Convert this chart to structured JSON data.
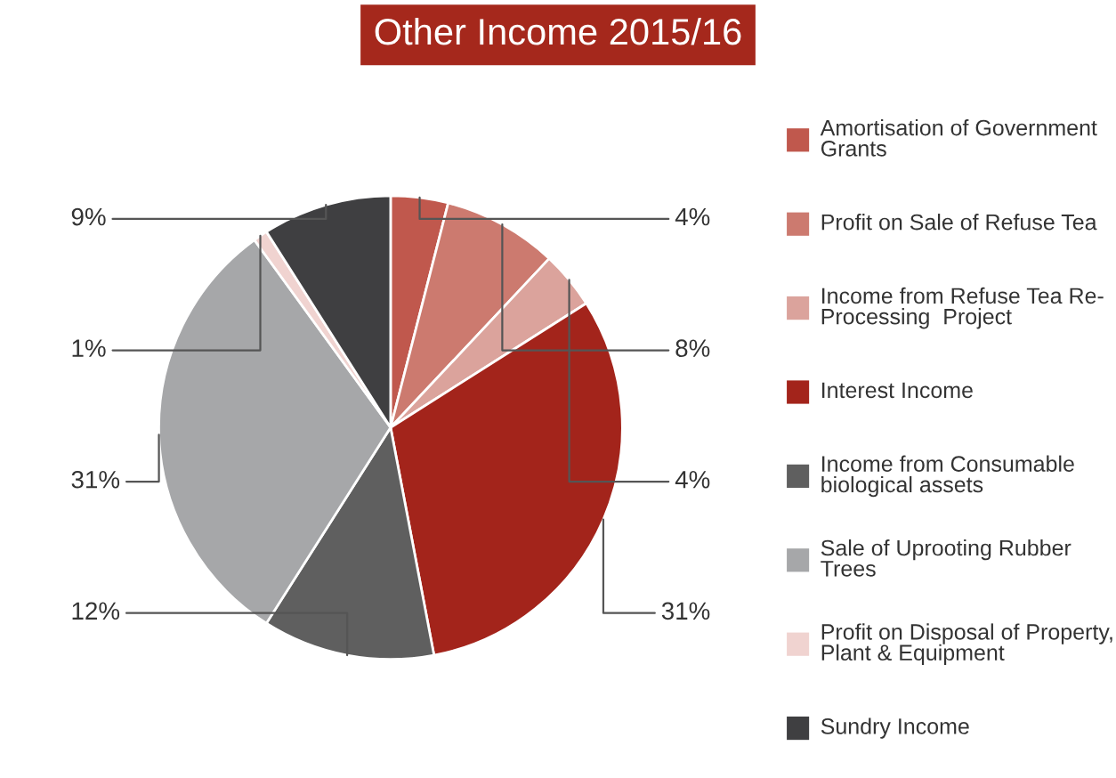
{
  "chart_data": {
    "type": "pie",
    "title": "Other Income 2015/16",
    "categories": [
      "Amortisation of Government Grants",
      "Profit on Sale of Refuse Tea",
      "Income from Refuse Tea Re- Processing  Project",
      "Interest Income",
      "Income from Consumable biological assets",
      "Sale of Uprooting Rubber Trees",
      "Profit on Disposal of Property, Plant & Equipment",
      "Sundry Income"
    ],
    "values": [
      4,
      8,
      4,
      31,
      12,
      31,
      1,
      9
    ],
    "value_labels": [
      "4%",
      "8%",
      "4%",
      "31%",
      "12%",
      "31%",
      "1%",
      "9%"
    ],
    "colors": [
      "#c0584d",
      "#cc7a6f",
      "#dba39c",
      "#a3241b",
      "#5f5f5f",
      "#a6a7a9",
      "#f0d3d0",
      "#3f3f41"
    ],
    "legend": "right"
  }
}
